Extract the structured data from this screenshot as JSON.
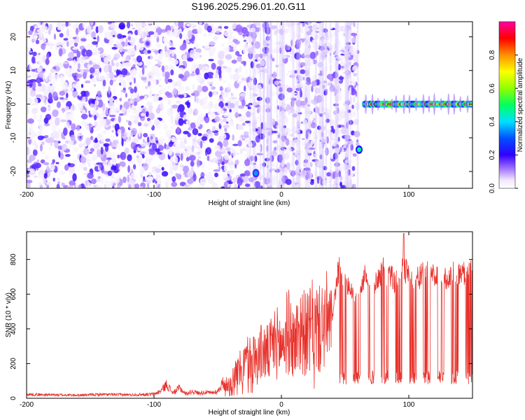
{
  "title": "S196.2025.296.01.20.G11",
  "chart_data": [
    {
      "type": "heatmap",
      "xlabel": "Height of straight line (km)",
      "ylabel": "Frequency (Hz)",
      "xlim": [
        -200,
        150
      ],
      "ylim": [
        -25,
        24.5
      ],
      "x_ticks": [
        -200,
        -100,
        0,
        100
      ],
      "y_ticks": [
        -20,
        -10,
        0,
        10,
        20
      ],
      "colorbar": {
        "label": "Normalized spectral amplitude",
        "range": [
          0,
          1
        ],
        "ticks": [
          "0.0",
          "0.2",
          "0.4",
          "0.6",
          "0.8"
        ]
      },
      "regions": [
        {
          "x": [
            -200,
            60
          ],
          "description_value": "scattered low amplitude noise",
          "amplitude": [
            0.02,
            0.2
          ]
        },
        {
          "x": [
            65,
            150
          ],
          "frequency": 0,
          "amplitude": [
            0.4,
            1.0
          ]
        }
      ],
      "peaks": [
        {
          "x": -105,
          "y": 18,
          "amplitude": 0.15
        },
        {
          "x": -20,
          "y": -20.5,
          "amplitude": 0.35
        },
        {
          "x": 61,
          "y": -13.5,
          "amplitude": 0.45
        }
      ]
    },
    {
      "type": "line",
      "xlabel": "Height of straight line (km)",
      "ylabel": "SNR (10 * v/v)",
      "xlim": [
        -200,
        150
      ],
      "ylim": [
        0,
        960
      ],
      "x_ticks": [
        -200,
        -100,
        0,
        100
      ],
      "y_ticks": [
        0,
        200,
        400,
        600,
        800
      ],
      "series": [
        {
          "color": "#e8302a",
          "x": [
            -200,
            -180,
            -160,
            -140,
            -120,
            -100,
            -95,
            -90,
            -85,
            -80,
            -75,
            -70,
            -65,
            -60,
            -55,
            -50,
            -45,
            -40,
            -35,
            -30,
            -25,
            -20,
            -15,
            -10,
            -5,
            0,
            5,
            10,
            15,
            20,
            25,
            30,
            35,
            40,
            45,
            50,
            55,
            60,
            65,
            70,
            75,
            80,
            85,
            90,
            95,
            100,
            105,
            110,
            115,
            120,
            125,
            130,
            135,
            140,
            145,
            150
          ],
          "y": [
            22,
            20,
            18,
            22,
            20,
            24,
            40,
            80,
            30,
            60,
            25,
            40,
            30,
            35,
            30,
            40,
            100,
            140,
            190,
            250,
            320,
            300,
            360,
            340,
            440,
            400,
            520,
            420,
            540,
            480,
            560,
            520,
            600,
            500,
            760,
            700,
            640,
            560,
            720,
            640,
            700,
            760,
            720,
            680,
            760,
            740,
            700,
            720,
            760,
            720,
            740,
            700,
            740,
            730,
            740,
            740
          ]
        }
      ]
    }
  ]
}
